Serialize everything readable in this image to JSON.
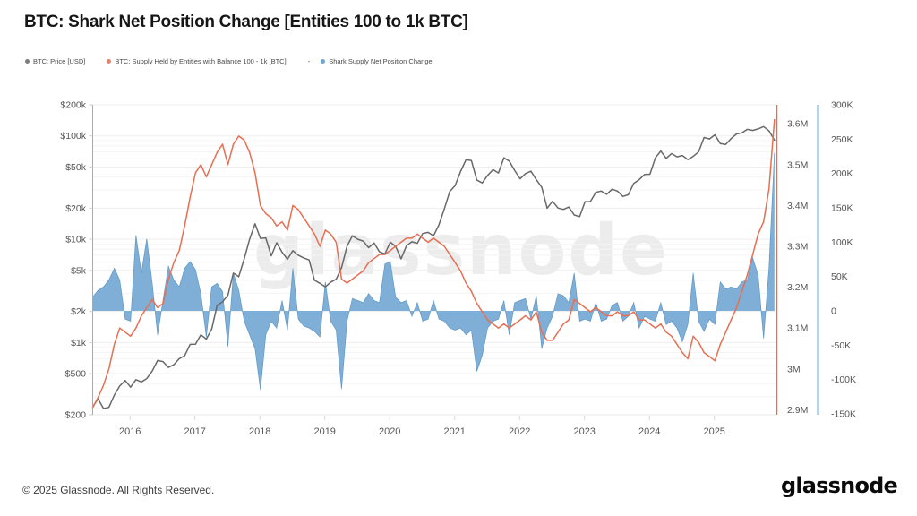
{
  "page": {
    "title": "BTC: Shark Net Position Change [Entities 100 to 1k BTC]",
    "watermark": "glassnode",
    "footer": {
      "copyright": "© 2025 Glassnode. All Rights Reserved.",
      "logo": "glassnode"
    }
  },
  "legend": {
    "separator": "-",
    "items": [
      {
        "label": "BTC: Price [USD]",
        "color": "#7d7d7d"
      },
      {
        "label": "BTC: Supply Held by Entities with Balance 100 - 1k [BTC]",
        "color": "#e8826c"
      },
      {
        "label": "Shark Supply Net Position Change",
        "color": "#6fa6d2"
      }
    ]
  },
  "chart_data": {
    "type": "mixed",
    "title": "BTC: Shark Net Position Change [Entities 100 to 1k BTC]",
    "x_start_month": "2015-06",
    "x_end_month": "2025-12",
    "x_ticks": [
      "2016",
      "2017",
      "2018",
      "2019",
      "2020",
      "2021",
      "2022",
      "2023",
      "2024",
      "2025"
    ],
    "grid": "horizontal-only",
    "axes": {
      "price": {
        "side": "left",
        "scale": "log",
        "range": [
          200,
          200000
        ],
        "ticks": [
          {
            "v": 200,
            "label": "$200"
          },
          {
            "v": 500,
            "label": "$500"
          },
          {
            "v": 1000,
            "label": "$1k"
          },
          {
            "v": 2000,
            "label": "$2k"
          },
          {
            "v": 5000,
            "label": "$5k"
          },
          {
            "v": 10000,
            "label": "$10k"
          },
          {
            "v": 20000,
            "label": "$20k"
          },
          {
            "v": 50000,
            "label": "$50k"
          },
          {
            "v": 100000,
            "label": "$100k"
          },
          {
            "v": 200000,
            "label": "$200k"
          }
        ],
        "minor_gridlines": [
          300,
          400,
          600,
          700,
          800,
          900,
          3000,
          4000,
          6000,
          7000,
          8000,
          9000,
          30000,
          40000,
          60000,
          70000,
          80000,
          90000
        ]
      },
      "supply": {
        "side": "right-inner",
        "scale": "linear",
        "range": [
          2.887,
          3.646
        ],
        "unit": "M BTC",
        "ticks": [
          {
            "v": 3.6,
            "label": "3.6M"
          },
          {
            "v": 3.5,
            "label": "3.5M"
          },
          {
            "v": 3.4,
            "label": "3.4M"
          },
          {
            "v": 3.3,
            "label": "3.3M"
          },
          {
            "v": 3.2,
            "label": "3.2M"
          },
          {
            "v": 3.1,
            "label": "3.1M"
          },
          {
            "v": 3.0,
            "label": "3M"
          },
          {
            "v": 2.9,
            "label": "2.9M"
          }
        ]
      },
      "net": {
        "side": "right-outer",
        "scale": "linear",
        "range": [
          -150,
          300
        ],
        "unit": "K BTC",
        "ticks": [
          {
            "v": 300,
            "label": "300K"
          },
          {
            "v": 250,
            "label": "250K"
          },
          {
            "v": 200,
            "label": "200K"
          },
          {
            "v": 150,
            "label": "150K"
          },
          {
            "v": 100,
            "label": "100K"
          },
          {
            "v": 50,
            "label": "50K"
          },
          {
            "v": 0,
            "label": "0"
          },
          {
            "v": -50,
            "label": "-50K"
          },
          {
            "v": -100,
            "label": "-100K"
          },
          {
            "v": -150,
            "label": "-150K"
          }
        ]
      }
    },
    "series": [
      {
        "name": "BTC: Price [USD]",
        "type": "line",
        "axis": "price",
        "color": "#686868",
        "monthly_values": [
          240,
          285,
          230,
          236,
          310,
          380,
          430,
          370,
          437,
          416,
          448,
          530,
          670,
          655,
          575,
          610,
          700,
          745,
          960,
          965,
          1190,
          1080,
          1350,
          2300,
          2480,
          2870,
          4700,
          4340,
          6450,
          10000,
          14100,
          10200,
          10300,
          6900,
          9250,
          7500,
          6400,
          7750,
          7000,
          6600,
          6300,
          4000,
          3740,
          3460,
          3850,
          4100,
          5300,
          8550,
          10800,
          10000,
          9600,
          8300,
          9200,
          7550,
          7200,
          9350,
          8550,
          6450,
          8650,
          9450,
          9140,
          11350,
          11650,
          10780,
          13800,
          19700,
          29000,
          33100,
          45200,
          58800,
          57750,
          37300,
          35040,
          41500,
          47150,
          43800,
          61300,
          57000,
          46200,
          38480,
          43200,
          45540,
          37650,
          31800,
          19985,
          23300,
          20050,
          19430,
          20490,
          17168,
          16540,
          23130,
          23140,
          28480,
          29250,
          27220,
          30480,
          29230,
          25930,
          26970,
          34660,
          37720,
          42280,
          42580,
          61200,
          71330,
          60640,
          67530,
          62680,
          64620,
          58970,
          63330,
          70220,
          96450,
          93430,
          102400,
          84350,
          82550,
          94180,
          104600,
          107170,
          115800,
          113000,
          117000,
          123000,
          112000,
          91000
        ]
      },
      {
        "name": "BTC: Supply Held by Entities with Balance 100 - 1k [BTC]",
        "type": "line",
        "axis": "supply",
        "color": "#e66f53",
        "monthly_values": [
          2.905,
          2.93,
          2.96,
          3.0,
          3.06,
          3.1,
          3.09,
          3.08,
          3.1,
          3.13,
          3.15,
          3.17,
          3.15,
          3.16,
          3.22,
          3.26,
          3.29,
          3.35,
          3.42,
          3.48,
          3.5,
          3.47,
          3.5,
          3.53,
          3.55,
          3.5,
          3.55,
          3.57,
          3.56,
          3.53,
          3.48,
          3.4,
          3.38,
          3.37,
          3.35,
          3.36,
          3.34,
          3.4,
          3.39,
          3.37,
          3.35,
          3.33,
          3.3,
          3.34,
          3.33,
          3.31,
          3.22,
          3.21,
          3.22,
          3.23,
          3.24,
          3.26,
          3.27,
          3.28,
          3.28,
          3.29,
          3.3,
          3.31,
          3.32,
          3.32,
          3.33,
          3.32,
          3.31,
          3.32,
          3.31,
          3.3,
          3.28,
          3.26,
          3.24,
          3.21,
          3.19,
          3.16,
          3.14,
          3.12,
          3.11,
          3.1,
          3.11,
          3.1,
          3.11,
          3.12,
          3.13,
          3.12,
          3.14,
          3.09,
          3.07,
          3.07,
          3.09,
          3.11,
          3.12,
          3.17,
          3.16,
          3.15,
          3.14,
          3.15,
          3.14,
          3.13,
          3.13,
          3.14,
          3.13,
          3.13,
          3.14,
          3.12,
          3.12,
          3.11,
          3.1,
          3.11,
          3.09,
          3.08,
          3.06,
          3.04,
          3.025,
          3.08,
          3.065,
          3.04,
          3.03,
          3.02,
          3.06,
          3.09,
          3.12,
          3.15,
          3.19,
          3.23,
          3.28,
          3.33,
          3.36,
          3.44,
          3.61
        ]
      },
      {
        "name": "Shark Supply Net Position Change",
        "type": "area",
        "axis": "net",
        "color": "#74a8d2",
        "edge_color": "#5f98c8",
        "monthly_values": [
          20,
          30,
          35,
          45,
          62,
          45,
          -12,
          -15,
          110,
          55,
          105,
          40,
          -35,
          15,
          65,
          45,
          35,
          62,
          72,
          60,
          25,
          -38,
          35,
          40,
          28,
          -52,
          55,
          30,
          -15,
          -35,
          -55,
          -115,
          -35,
          -15,
          -25,
          15,
          -28,
          62,
          -12,
          -22,
          -25,
          -30,
          -38,
          42,
          -15,
          -28,
          -114,
          -15,
          18,
          15,
          12,
          25,
          15,
          12,
          68,
          72,
          20,
          12,
          15,
          -8,
          12,
          -15,
          -12,
          15,
          -12,
          -15,
          -25,
          -28,
          -25,
          -35,
          -28,
          -88,
          -65,
          -25,
          -15,
          -12,
          15,
          -35,
          12,
          15,
          18,
          -12,
          22,
          -55,
          -25,
          -8,
          25,
          22,
          12,
          55,
          -15,
          -12,
          -15,
          12,
          -15,
          -12,
          8,
          12,
          -15,
          -8,
          12,
          -25,
          -8,
          -12,
          -15,
          12,
          -20,
          -15,
          -25,
          -45,
          -20,
          55,
          -15,
          -30,
          -12,
          -20,
          42,
          32,
          35,
          32,
          42,
          45,
          77,
          52,
          -40,
          62,
          230
        ]
      }
    ]
  }
}
